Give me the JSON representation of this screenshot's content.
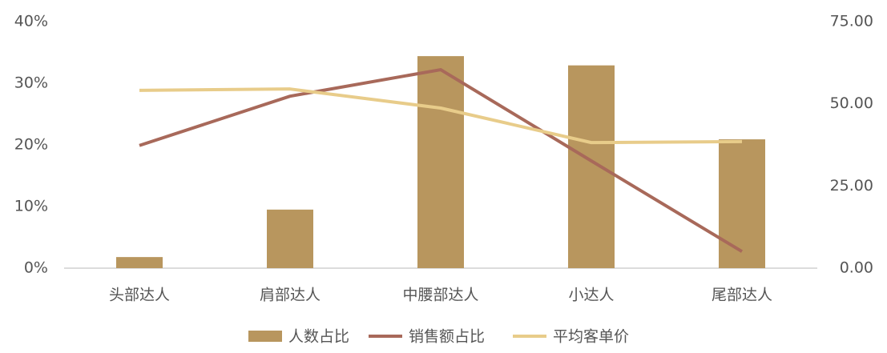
{
  "chart_data": {
    "type": "bar-line",
    "categories": [
      "头部达人",
      "肩部达人",
      "中腰部达人",
      "小达人",
      "尾部达人"
    ],
    "series": [
      {
        "name": "人数占比",
        "type": "bar",
        "color": "#b8965e",
        "values": [
          1.8,
          9.5,
          34.4,
          32.9,
          20.9
        ]
      },
      {
        "name": "销售额占比",
        "type": "line",
        "color": "#a8695a",
        "values": [
          19.9,
          27.9,
          32.2,
          17.4,
          2.7
        ]
      },
      {
        "name": "平均客单价",
        "type": "line",
        "axis": "y2",
        "color": "#e8cc8a",
        "values": [
          54.1,
          54.5,
          48.7,
          38.2,
          38.5
        ]
      }
    ],
    "ylim": [
      0,
      40
    ],
    "yticks": [
      {
        "value": 0,
        "label": "0%"
      },
      {
        "value": 10,
        "label": "10%"
      },
      {
        "value": 20,
        "label": "20%"
      },
      {
        "value": 30,
        "label": "30%"
      },
      {
        "value": 40,
        "label": "40%"
      }
    ],
    "y2lim": [
      0,
      75
    ],
    "y2ticks": [
      {
        "value": 0,
        "label": "0.00"
      },
      {
        "value": 25,
        "label": "25.00"
      },
      {
        "value": 50,
        "label": "50.00"
      },
      {
        "value": 75,
        "label": "75.00"
      }
    ],
    "legend": "bottom"
  }
}
